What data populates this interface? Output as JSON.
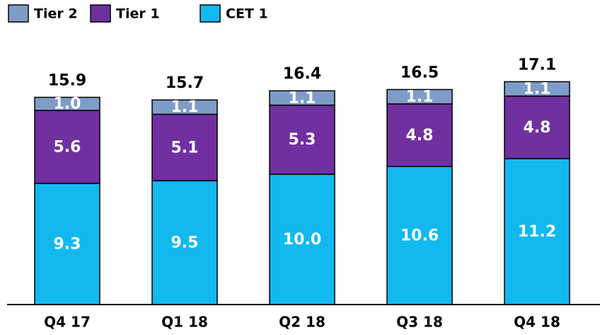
{
  "chart_data": {
    "type": "stacked_bar",
    "categories": [
      "Q4 17",
      "Q1 18",
      "Q2 18",
      "Q3 18",
      "Q4 18"
    ],
    "series": [
      {
        "name": "Tier 2",
        "color": "#7f9cc8",
        "values": [
          1.0,
          1.1,
          1.1,
          1.1,
          1.1
        ],
        "value_labels": [
          "1.0",
          "1.1",
          "1.1",
          "1.1",
          "1.1"
        ]
      },
      {
        "name": "Tier 1",
        "color": "#7030a0",
        "values": [
          5.6,
          5.1,
          5.3,
          4.8,
          4.8
        ],
        "value_labels": [
          "5.6",
          "5.1",
          "5.3",
          "4.8",
          "4.8"
        ]
      },
      {
        "name": "CET 1",
        "color": "#12b9ef",
        "values": [
          9.3,
          9.5,
          10.0,
          10.6,
          11.2
        ],
        "value_labels": [
          "9.3",
          "9.5",
          "10.0",
          "10.6",
          "11.2"
        ]
      }
    ],
    "totals": [
      15.9,
      15.7,
      16.4,
      16.5,
      17.1
    ]
  }
}
